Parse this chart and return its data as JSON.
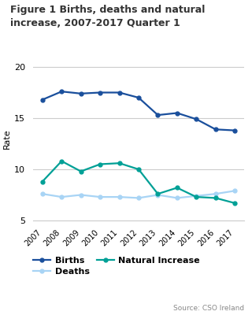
{
  "title": "Figure 1 Births, deaths and natural\nincrease, 2007-2017 Quarter 1",
  "years": [
    2007,
    2008,
    2009,
    2010,
    2011,
    2012,
    2013,
    2014,
    2015,
    2016,
    2017
  ],
  "births": [
    16.8,
    17.6,
    17.4,
    17.5,
    17.5,
    17.0,
    15.3,
    15.5,
    14.9,
    13.9,
    13.8
  ],
  "deaths": [
    7.6,
    7.3,
    7.5,
    7.3,
    7.3,
    7.2,
    7.5,
    7.2,
    7.4,
    7.6,
    7.9
  ],
  "natural_increase": [
    8.8,
    10.8,
    9.8,
    10.5,
    10.6,
    10.0,
    7.6,
    8.2,
    7.3,
    7.2,
    6.7
  ],
  "births_color": "#1a4f9c",
  "deaths_color": "#a8d4f5",
  "natural_increase_color": "#00a096",
  "ylabel": "Rate",
  "ylim": [
    5,
    21
  ],
  "yticks": [
    5,
    10,
    15,
    20
  ],
  "source": "Source: CSO Ireland",
  "legend_labels": [
    "Births",
    "Deaths",
    "Natural Increase"
  ],
  "background_color": "#ffffff",
  "grid_color": "#cccccc"
}
